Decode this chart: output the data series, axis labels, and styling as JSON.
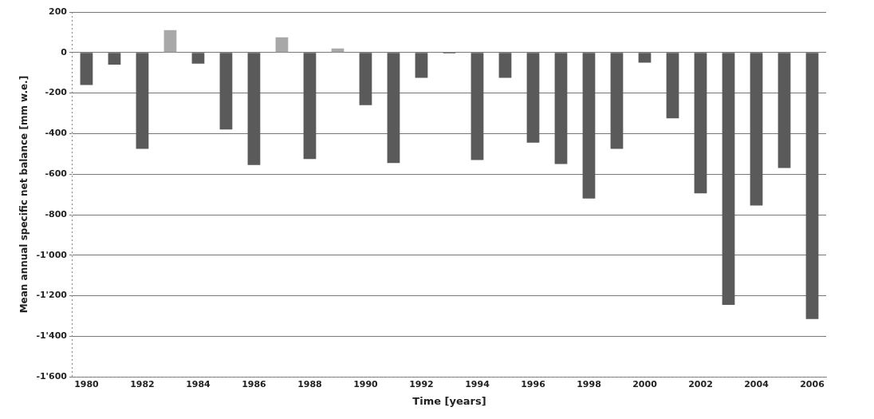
{
  "chart_data": {
    "type": "bar",
    "xlabel": "Time [years]",
    "ylabel": "Mean annual specific net balance [mm w.e.]",
    "categories": [
      "1980",
      null,
      "1982",
      null,
      "1984",
      null,
      "1986",
      null,
      "1988",
      null,
      "1990",
      null,
      "1992",
      null,
      "1994",
      null,
      "1996",
      null,
      "1998",
      null,
      "2000",
      null,
      "2002",
      null,
      "2004",
      null,
      "2006"
    ],
    "values": [
      -160,
      -60,
      -475,
      110,
      -55,
      -380,
      -555,
      75,
      -525,
      20,
      -260,
      -545,
      -125,
      -5,
      -530,
      -125,
      -445,
      -550,
      -720,
      -475,
      -50,
      -325,
      -695,
      -1245,
      -755,
      -570,
      -1315
    ],
    "colors": [
      "#5a5a5a",
      "#5a5a5a",
      "#5a5a5a",
      "#a8a8a8",
      "#5a5a5a",
      "#5a5a5a",
      "#5a5a5a",
      "#a8a8a8",
      "#5a5a5a",
      "#a8a8a8",
      "#5a5a5a",
      "#5a5a5a",
      "#5a5a5a",
      "#5a5a5a",
      "#5a5a5a",
      "#5a5a5a",
      "#5a5a5a",
      "#5a5a5a",
      "#5a5a5a",
      "#5a5a5a",
      "#5a5a5a",
      "#5a5a5a",
      "#5a5a5a",
      "#5a5a5a",
      "#5a5a5a",
      "#5a5a5a",
      "#5a5a5a"
    ],
    "ylim": [
      -1600,
      200
    ],
    "yticks": [
      200,
      0,
      {
        "value": -200,
        "label": "-200"
      },
      {
        "value": -400,
        "label": "-400"
      },
      {
        "value": -600,
        "label": "-600"
      },
      {
        "value": -800,
        "label": "-800"
      },
      {
        "value": -1000,
        "label": "-1'000"
      },
      {
        "value": -1200,
        "label": "-1'200"
      },
      {
        "value": -1400,
        "label": "-1'400"
      },
      {
        "value": -1600,
        "label": "-1'600"
      }
    ],
    "grid": "y",
    "legend": false
  }
}
